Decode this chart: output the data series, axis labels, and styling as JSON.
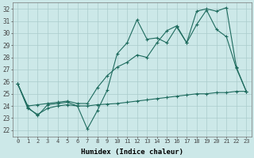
{
  "xlabel": "Humidex (Indice chaleur)",
  "ylabel": "",
  "bg_color": "#cce8e8",
  "grid_color": "#aacccc",
  "line_color": "#1e6b5e",
  "xlim": [
    -0.5,
    23.5
  ],
  "ylim": [
    21.5,
    32.5
  ],
  "xticks": [
    0,
    1,
    2,
    3,
    4,
    5,
    6,
    7,
    8,
    9,
    10,
    11,
    12,
    13,
    14,
    15,
    16,
    17,
    18,
    19,
    20,
    21,
    22,
    23
  ],
  "yticks": [
    22,
    23,
    24,
    25,
    26,
    27,
    28,
    29,
    30,
    31,
    32
  ],
  "x_all": [
    0,
    1,
    2,
    3,
    4,
    5,
    6,
    7,
    8,
    9,
    10,
    11,
    12,
    13,
    14,
    15,
    16,
    17,
    18,
    19,
    20,
    21,
    22,
    23
  ],
  "line1_y": [
    25.8,
    23.9,
    23.2,
    24.1,
    24.2,
    24.3,
    24.0,
    22.1,
    23.6,
    25.3,
    28.3,
    29.2,
    31.1,
    29.5,
    29.6,
    29.2,
    30.5,
    29.2,
    30.7,
    31.9,
    30.3,
    29.7,
    27.1,
    25.2
  ],
  "line2_x": [
    0,
    1,
    2,
    3,
    4,
    5,
    6,
    7,
    8,
    9,
    10,
    11,
    12,
    13,
    14,
    15,
    16,
    17,
    18,
    19,
    20,
    21,
    22,
    23
  ],
  "line2_y": [
    25.8,
    24.0,
    24.1,
    24.2,
    24.3,
    24.4,
    24.2,
    24.2,
    25.5,
    26.5,
    27.2,
    27.6,
    28.2,
    28.0,
    29.2,
    30.2,
    30.6,
    29.2,
    31.8,
    32.0,
    31.8,
    32.1,
    27.2,
    25.2
  ],
  "line3_y": [
    25.8,
    23.8,
    23.3,
    23.8,
    24.0,
    24.1,
    24.0,
    24.0,
    24.1,
    24.15,
    24.2,
    24.3,
    24.4,
    24.5,
    24.6,
    24.7,
    24.8,
    24.9,
    25.0,
    25.0,
    25.1,
    25.1,
    25.2,
    25.2
  ]
}
